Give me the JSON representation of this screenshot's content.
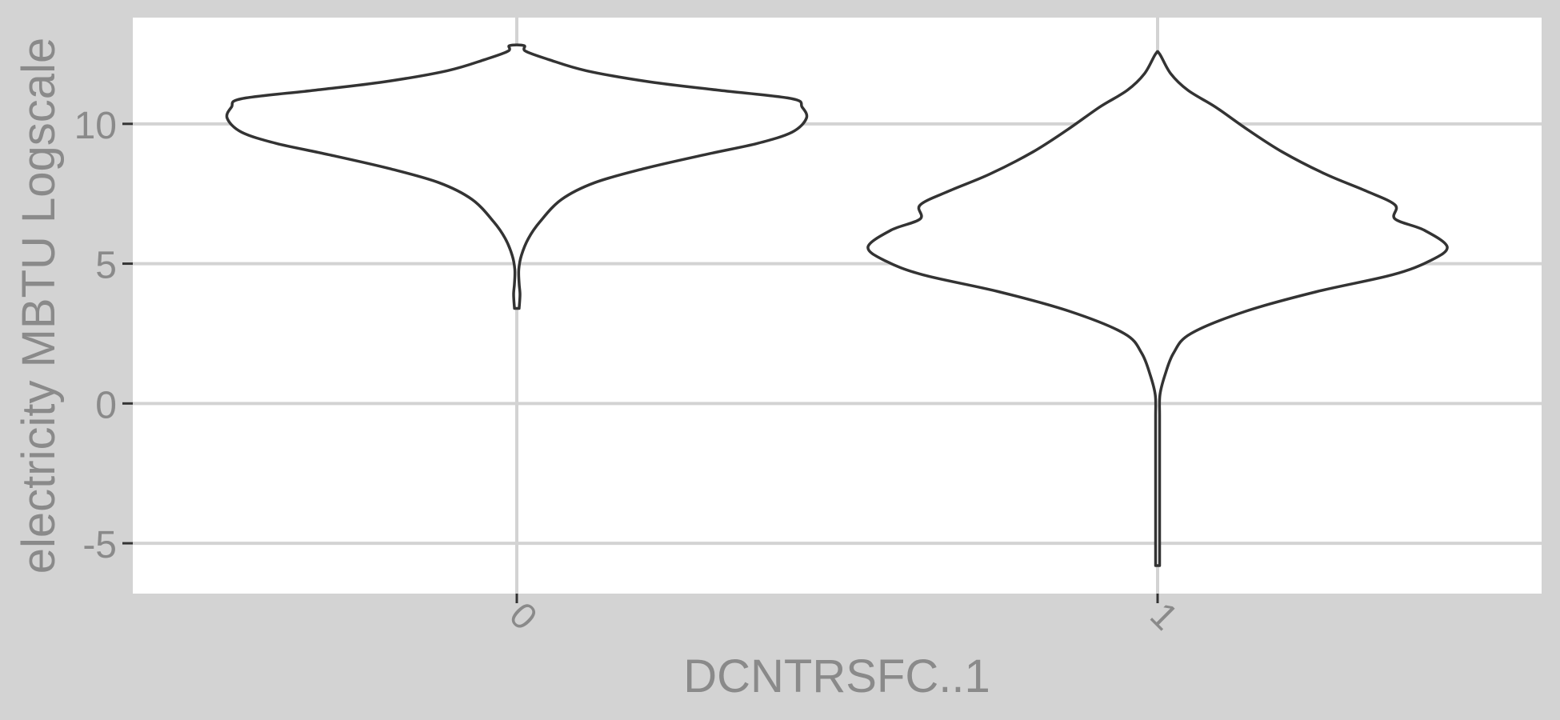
{
  "chart_data": {
    "type": "violin",
    "title": "",
    "xlabel": "DCNTRSFC..1",
    "ylabel": "electricity MBTU Logscale",
    "categories": [
      "0",
      "1"
    ],
    "ylim": [
      -6.8,
      13.8
    ],
    "yticks": [
      -5,
      0,
      5,
      10
    ],
    "ytick_labels": [
      "-5",
      "0",
      "5",
      "10"
    ],
    "grid": true,
    "legend": "none",
    "colors": {
      "background": "#d3d3d3",
      "panel": "#ffffff",
      "grid": "#d3d3d3",
      "outline": "#333333",
      "text": "#8a8a8a"
    },
    "series": [
      {
        "category": "0",
        "min": 3.4,
        "max": 12.8,
        "density": [
          [
            3.4,
            0.008
          ],
          [
            3.9,
            0.011
          ],
          [
            4.3,
            0.008
          ],
          [
            4.8,
            0.006
          ],
          [
            5.3,
            0.016
          ],
          [
            5.9,
            0.04
          ],
          [
            6.5,
            0.08
          ],
          [
            7.3,
            0.155
          ],
          [
            7.9,
            0.27
          ],
          [
            8.4,
            0.44
          ],
          [
            8.9,
            0.65
          ],
          [
            9.3,
            0.83
          ],
          [
            9.7,
            0.95
          ],
          [
            10.2,
            1.0
          ],
          [
            10.6,
            0.985
          ],
          [
            10.9,
            0.95
          ],
          [
            11.2,
            0.7
          ],
          [
            11.5,
            0.46
          ],
          [
            11.9,
            0.24
          ],
          [
            12.3,
            0.11
          ],
          [
            12.6,
            0.03
          ],
          [
            12.8,
            0.025
          ]
        ]
      },
      {
        "category": "1",
        "min": -5.8,
        "max": 12.5,
        "density": [
          [
            -5.8,
            0.001
          ],
          [
            -4.0,
            0.003
          ],
          [
            -2.0,
            0.004
          ],
          [
            -0.5,
            0.006
          ],
          [
            0.3,
            0.008
          ],
          [
            1.0,
            0.025
          ],
          [
            1.8,
            0.055
          ],
          [
            2.5,
            0.115
          ],
          [
            3.3,
            0.305
          ],
          [
            4.0,
            0.55
          ],
          [
            4.6,
            0.81
          ],
          [
            5.1,
            0.94
          ],
          [
            5.6,
            1.0
          ],
          [
            6.2,
            0.92
          ],
          [
            6.6,
            0.82
          ],
          [
            7.1,
            0.82
          ],
          [
            7.6,
            0.72
          ],
          [
            8.2,
            0.58
          ],
          [
            9.0,
            0.43
          ],
          [
            9.8,
            0.31
          ],
          [
            10.6,
            0.2
          ],
          [
            11.2,
            0.105
          ],
          [
            11.8,
            0.045
          ],
          [
            12.5,
            0.005
          ]
        ]
      }
    ]
  }
}
